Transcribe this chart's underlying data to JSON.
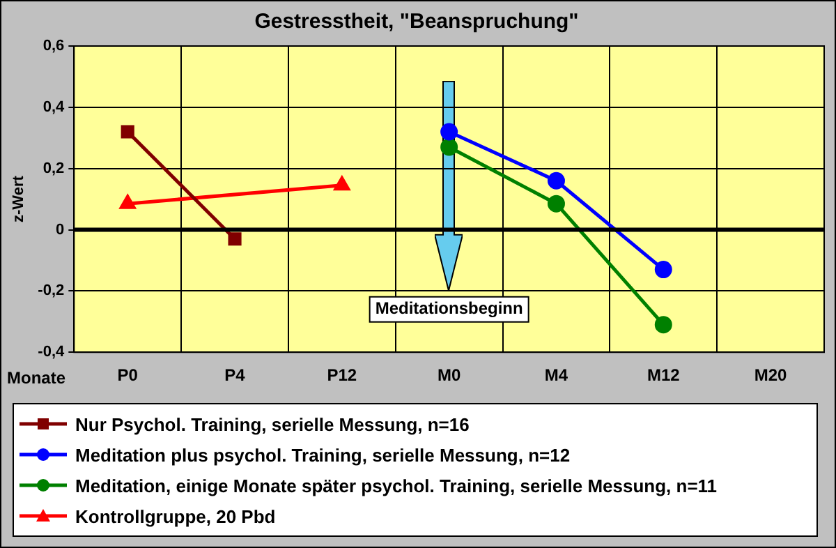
{
  "chart_data": {
    "type": "line",
    "title": "Gestresstheit, \"Beanspruchung\"",
    "xlabel": "Monate",
    "ylabel": "z-Wert",
    "categories": [
      "P0",
      "P4",
      "P12",
      "M0",
      "M4",
      "M12",
      "M20"
    ],
    "series": [
      {
        "name": "Nur Psychol. Training, serielle Messung, n=16",
        "color": "#800000",
        "marker": "square",
        "values": [
          0.32,
          -0.03,
          null,
          null,
          null,
          null,
          null
        ]
      },
      {
        "name": "Meditation plus psychol. Training, serielle Messung, n=12",
        "color": "#0000ff",
        "marker": "circle",
        "values": [
          null,
          null,
          null,
          0.32,
          0.16,
          -0.13,
          null
        ]
      },
      {
        "name": "Meditation, einige Monate später psychol. Training, serielle Messung, n=11",
        "color": "#008000",
        "marker": "circle",
        "values": [
          null,
          null,
          null,
          0.27,
          0.085,
          -0.31,
          null
        ]
      },
      {
        "name": "Kontrollgruppe, 20 Pbd",
        "color": "#ff0000",
        "marker": "triangle",
        "values": [
          0.085,
          null,
          0.145,
          null,
          null,
          null,
          null
        ]
      }
    ],
    "ylim": [
      -0.4,
      0.6
    ],
    "yticks": [
      {
        "value": -0.4,
        "label": "-0,4"
      },
      {
        "value": -0.2,
        "label": "-0,2"
      },
      0,
      {
        "value": 0.2,
        "label": "0,2"
      },
      {
        "value": 0.4,
        "label": "0,4"
      },
      {
        "value": 0.6,
        "label": "0,6"
      }
    ],
    "grid": true,
    "legend": "bottom",
    "annotations": [
      "Meditationsbeginn"
    ]
  }
}
